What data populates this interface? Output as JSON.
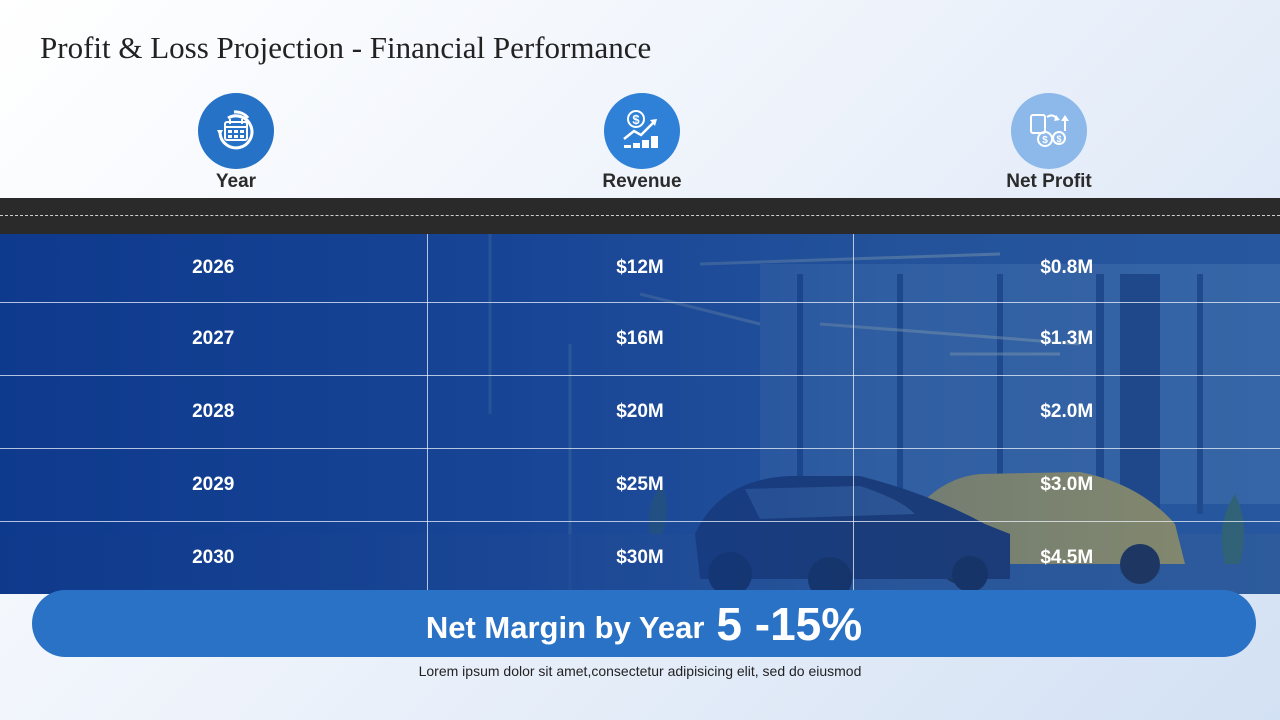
{
  "title": "Profit & Loss Projection - Financial Performance",
  "columns": [
    {
      "label": "Year",
      "icon": "calendar-cycle-icon",
      "color": "#2672c6"
    },
    {
      "label": "Revenue",
      "icon": "revenue-growth-icon",
      "color": "#2f81d8"
    },
    {
      "label": "Net Profit",
      "icon": "money-exchange-icon",
      "color": "#8cb9ea"
    }
  ],
  "rows": [
    {
      "year": "2026",
      "revenue": "$12M",
      "net_profit": "$0.8M"
    },
    {
      "year": "2027",
      "revenue": "$16M",
      "net_profit": "$1.3M"
    },
    {
      "year": "2028",
      "revenue": "$20M",
      "net_profit": "$2.0M"
    },
    {
      "year": "2029",
      "revenue": "$25M",
      "net_profit": "$3.0M"
    },
    {
      "year": "2030",
      "revenue": "$30M",
      "net_profit": "$4.5M"
    }
  ],
  "banner": {
    "text": "Net Margin by Year",
    "value": "5 -15%"
  },
  "footnote": "Lorem ipsum dolor sit amet,consectetur adipisicing elit, sed do eiusmod",
  "colors": {
    "accent": "#2a72c5",
    "table_overlay": "#0c378c",
    "band": "#2a2a2a"
  }
}
